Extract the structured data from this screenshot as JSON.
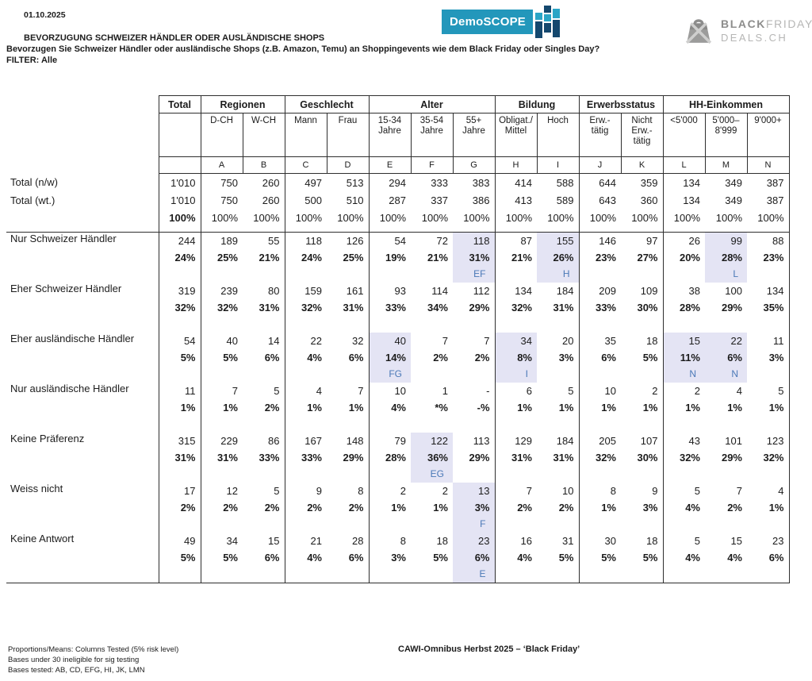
{
  "meta": {
    "date": "01.10.2025"
  },
  "header": {
    "title": "BEVORZUGUNG SCHWEIZER HÄNDLER ODER AUSLÄNDISCHE SHOPS",
    "subtitle": "Bevorzugen Sie Schweizer Händler oder ausländische Shops (z.B. Amazon, Temu) an Shoppingevents wie dem Black Friday oder Singles Day?",
    "filter": "FILTER: Alle"
  },
  "logos": {
    "demoscope": "DemoSCOPE",
    "bf_bold": "BLACK",
    "bf_light": "FRIDAY",
    "bf_line2": "DEALS.CH"
  },
  "colors": {
    "highlight": "#e4e4f4",
    "sig_letter": "#4b79b7",
    "demoscope_teal": "#2397bb",
    "demoscope_navy": "#15486e",
    "logo_gray": "#b6b6b5",
    "logo_gray_dark": "#8d8d8c"
  },
  "table": {
    "groups": [
      {
        "label": "Total",
        "cols": 1
      },
      {
        "label": "Regionen",
        "cols": 2
      },
      {
        "label": "Geschlecht",
        "cols": 2
      },
      {
        "label": "Alter",
        "cols": 3
      },
      {
        "label": "Bildung",
        "cols": 2
      },
      {
        "label": "Erwerbsstatus",
        "cols": 2
      },
      {
        "label": "HH-Einkommen",
        "cols": 3
      }
    ],
    "columns": [
      {
        "label": "",
        "letter": ""
      },
      {
        "label": "D-CH",
        "letter": "A"
      },
      {
        "label": "W-CH",
        "letter": "B"
      },
      {
        "label": "Mann",
        "letter": "C"
      },
      {
        "label": "Frau",
        "letter": "D"
      },
      {
        "label": "15-34\nJahre",
        "letter": "E"
      },
      {
        "label": "35-54\nJahre",
        "letter": "F"
      },
      {
        "label": "55+\nJahre",
        "letter": "G"
      },
      {
        "label": "Obligat./\nMittel",
        "letter": "H"
      },
      {
        "label": "Hoch",
        "letter": "I"
      },
      {
        "label": "Erw.-\ntätig",
        "letter": "J"
      },
      {
        "label": "Nicht\nErw.-\ntätig",
        "letter": "K"
      },
      {
        "label": "<5'000",
        "letter": "L"
      },
      {
        "label": "5'000–\n8'999",
        "letter": "M"
      },
      {
        "label": "9'000+",
        "letter": "N"
      }
    ],
    "base_rows": [
      {
        "label": "Total (n/w)",
        "values": [
          "1'010",
          "750",
          "260",
          "497",
          "513",
          "294",
          "333",
          "383",
          "414",
          "588",
          "644",
          "359",
          "134",
          "349",
          "387"
        ]
      },
      {
        "label": "Total (wt.)",
        "values": [
          "1'010",
          "750",
          "260",
          "500",
          "510",
          "287",
          "337",
          "386",
          "413",
          "589",
          "643",
          "360",
          "134",
          "349",
          "387"
        ]
      },
      {
        "label": "",
        "values": [
          "100%",
          "100%",
          "100%",
          "100%",
          "100%",
          "100%",
          "100%",
          "100%",
          "100%",
          "100%",
          "100%",
          "100%",
          "100%",
          "100%",
          "100%"
        ]
      }
    ],
    "rows": [
      {
        "label": "Nur Schweizer Händler",
        "counts": [
          "244",
          "189",
          "55",
          "118",
          "126",
          "54",
          "72",
          "118",
          "87",
          "155",
          "146",
          "97",
          "26",
          "99",
          "88"
        ],
        "pcts": [
          "24%",
          "25%",
          "21%",
          "24%",
          "25%",
          "19%",
          "21%",
          "31%",
          "21%",
          "26%",
          "23%",
          "27%",
          "20%",
          "28%",
          "23%"
        ],
        "sigs": [
          "",
          "",
          "",
          "",
          "",
          "",
          "",
          "EF",
          "",
          "H",
          "",
          "",
          "",
          "L",
          ""
        ],
        "highlights": [
          7,
          9,
          13
        ]
      },
      {
        "label": "Eher Schweizer Händler",
        "counts": [
          "319",
          "239",
          "80",
          "159",
          "161",
          "93",
          "114",
          "112",
          "134",
          "184",
          "209",
          "109",
          "38",
          "100",
          "134"
        ],
        "pcts": [
          "32%",
          "32%",
          "31%",
          "32%",
          "31%",
          "33%",
          "34%",
          "29%",
          "32%",
          "31%",
          "33%",
          "30%",
          "28%",
          "29%",
          "35%"
        ],
        "sigs": [
          "",
          "",
          "",
          "",
          "",
          "",
          "",
          "",
          "",
          "",
          "",
          "",
          "",
          "",
          ""
        ],
        "highlights": []
      },
      {
        "label": "Eher ausländische Händler",
        "counts": [
          "54",
          "40",
          "14",
          "22",
          "32",
          "40",
          "7",
          "7",
          "34",
          "20",
          "35",
          "18",
          "15",
          "22",
          "11"
        ],
        "pcts": [
          "5%",
          "5%",
          "6%",
          "4%",
          "6%",
          "14%",
          "2%",
          "2%",
          "8%",
          "3%",
          "6%",
          "5%",
          "11%",
          "6%",
          "3%"
        ],
        "sigs": [
          "",
          "",
          "",
          "",
          "",
          "FG",
          "",
          "",
          "I",
          "",
          "",
          "",
          "N",
          "N",
          ""
        ],
        "highlights": [
          5,
          8,
          12,
          13
        ]
      },
      {
        "label": "Nur ausländische Händler",
        "counts": [
          "11",
          "7",
          "5",
          "4",
          "7",
          "10",
          "1",
          "-",
          "6",
          "5",
          "10",
          "2",
          "2",
          "4",
          "5"
        ],
        "pcts": [
          "1%",
          "1%",
          "2%",
          "1%",
          "1%",
          "4%",
          "*%",
          "-%",
          "1%",
          "1%",
          "1%",
          "1%",
          "1%",
          "1%",
          "1%"
        ],
        "sigs": [
          "",
          "",
          "",
          "",
          "",
          "",
          "",
          "",
          "",
          "",
          "",
          "",
          "",
          "",
          ""
        ],
        "highlights": []
      },
      {
        "label": "Keine Präferenz",
        "counts": [
          "315",
          "229",
          "86",
          "167",
          "148",
          "79",
          "122",
          "113",
          "129",
          "184",
          "205",
          "107",
          "43",
          "101",
          "123"
        ],
        "pcts": [
          "31%",
          "31%",
          "33%",
          "33%",
          "29%",
          "28%",
          "36%",
          "29%",
          "31%",
          "31%",
          "32%",
          "30%",
          "32%",
          "29%",
          "32%"
        ],
        "sigs": [
          "",
          "",
          "",
          "",
          "",
          "",
          "EG",
          "",
          "",
          "",
          "",
          "",
          "",
          "",
          ""
        ],
        "highlights": [
          6
        ]
      },
      {
        "label": "Weiss nicht",
        "counts": [
          "17",
          "12",
          "5",
          "9",
          "8",
          "2",
          "2",
          "13",
          "7",
          "10",
          "8",
          "9",
          "5",
          "7",
          "4"
        ],
        "pcts": [
          "2%",
          "2%",
          "2%",
          "2%",
          "2%",
          "1%",
          "1%",
          "3%",
          "2%",
          "2%",
          "1%",
          "3%",
          "4%",
          "2%",
          "1%"
        ],
        "sigs": [
          "",
          "",
          "",
          "",
          "",
          "",
          "",
          "F",
          "",
          "",
          "",
          "",
          "",
          "",
          ""
        ],
        "highlights": [
          7
        ]
      },
      {
        "label": "Keine Antwort",
        "counts": [
          "49",
          "34",
          "15",
          "21",
          "28",
          "8",
          "18",
          "23",
          "16",
          "31",
          "30",
          "18",
          "5",
          "15",
          "23"
        ],
        "pcts": [
          "5%",
          "5%",
          "6%",
          "4%",
          "6%",
          "3%",
          "5%",
          "6%",
          "4%",
          "5%",
          "5%",
          "5%",
          "4%",
          "4%",
          "6%"
        ],
        "sigs": [
          "",
          "",
          "",
          "",
          "",
          "",
          "",
          "E",
          "",
          "",
          "",
          "",
          "",
          "",
          ""
        ],
        "highlights": [
          7
        ]
      }
    ]
  },
  "footer": {
    "left": [
      "Proportions/Means: Columns Tested (5% risk level)",
      "Bases under 30 ineligible for sig testing",
      "Bases tested: AB, CD, EFG, HI, JK, LMN"
    ],
    "center": "CAWI-Omnibus Herbst 2025 – ‘Black Friday’"
  }
}
